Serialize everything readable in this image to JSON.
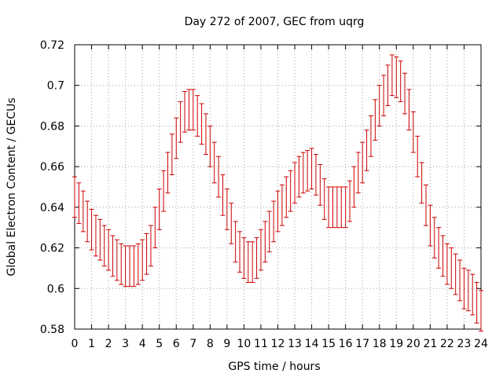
{
  "chart_data": {
    "type": "line",
    "title": "Day 272 of 2007, GEC from uqrg",
    "xlabel": "GPS time / hours",
    "ylabel": "Global Electron Content / GECUs",
    "xlim": [
      0,
      24
    ],
    "ylim": [
      0.58,
      0.72
    ],
    "x_ticks": [
      "0",
      "1",
      "2",
      "3",
      "4",
      "5",
      "6",
      "7",
      "8",
      "9",
      "10",
      "11",
      "12",
      "13",
      "14",
      "15",
      "16",
      "17",
      "18",
      "19",
      "20",
      "21",
      "22",
      "23",
      "24"
    ],
    "y_ticks": [
      "0.58",
      "0.6",
      "0.62",
      "0.64",
      "0.66",
      "0.68",
      "0.7",
      "0.72"
    ],
    "grid": true,
    "error_bar": 0.01,
    "series_color": "#cc0000",
    "series": [
      {
        "x": [
          0,
          0.25,
          0.5,
          0.75,
          1,
          1.25,
          1.5,
          1.75,
          2,
          2.25,
          2.5,
          2.75,
          3,
          3.25,
          3.5,
          3.75,
          4,
          4.25,
          4.5,
          4.75,
          5,
          5.25,
          5.5,
          5.75,
          6,
          6.25,
          6.5,
          6.75,
          7,
          7.25,
          7.5,
          7.75,
          8,
          8.25,
          8.5,
          8.75,
          9,
          9.25,
          9.5,
          9.75,
          10,
          10.25,
          10.5,
          10.75,
          11,
          11.25,
          11.5,
          11.75,
          12,
          12.25,
          12.5,
          12.75,
          13,
          13.25,
          13.5,
          13.75,
          14,
          14.25,
          14.5,
          14.75,
          15,
          15.25,
          15.5,
          15.75,
          16,
          16.25,
          16.5,
          16.75,
          17,
          17.25,
          17.5,
          17.75,
          18,
          18.25,
          18.5,
          18.75,
          19,
          19.25,
          19.5,
          19.75,
          20,
          20.25,
          20.5,
          20.75,
          21,
          21.25,
          21.5,
          21.75,
          22,
          22.25,
          22.5,
          22.75,
          23,
          23.25,
          23.5,
          23.75,
          24
        ],
        "values": [
          0.645,
          0.642,
          0.638,
          0.633,
          0.629,
          0.626,
          0.624,
          0.621,
          0.619,
          0.616,
          0.614,
          0.612,
          0.611,
          0.611,
          0.611,
          0.612,
          0.614,
          0.617,
          0.621,
          0.63,
          0.639,
          0.648,
          0.657,
          0.666,
          0.674,
          0.682,
          0.687,
          0.688,
          0.688,
          0.685,
          0.681,
          0.676,
          0.67,
          0.662,
          0.655,
          0.646,
          0.639,
          0.632,
          0.623,
          0.618,
          0.615,
          0.613,
          0.613,
          0.615,
          0.619,
          0.623,
          0.628,
          0.633,
          0.638,
          0.641,
          0.645,
          0.648,
          0.652,
          0.655,
          0.657,
          0.658,
          0.659,
          0.656,
          0.651,
          0.644,
          0.64,
          0.64,
          0.64,
          0.64,
          0.64,
          0.643,
          0.65,
          0.657,
          0.662,
          0.668,
          0.675,
          0.683,
          0.69,
          0.695,
          0.7,
          0.705,
          0.704,
          0.702,
          0.696,
          0.688,
          0.677,
          0.665,
          0.652,
          0.641,
          0.631,
          0.625,
          0.62,
          0.616,
          0.612,
          0.61,
          0.607,
          0.604,
          0.6,
          0.599,
          0.597,
          0.593,
          0.589
        ]
      }
    ]
  }
}
